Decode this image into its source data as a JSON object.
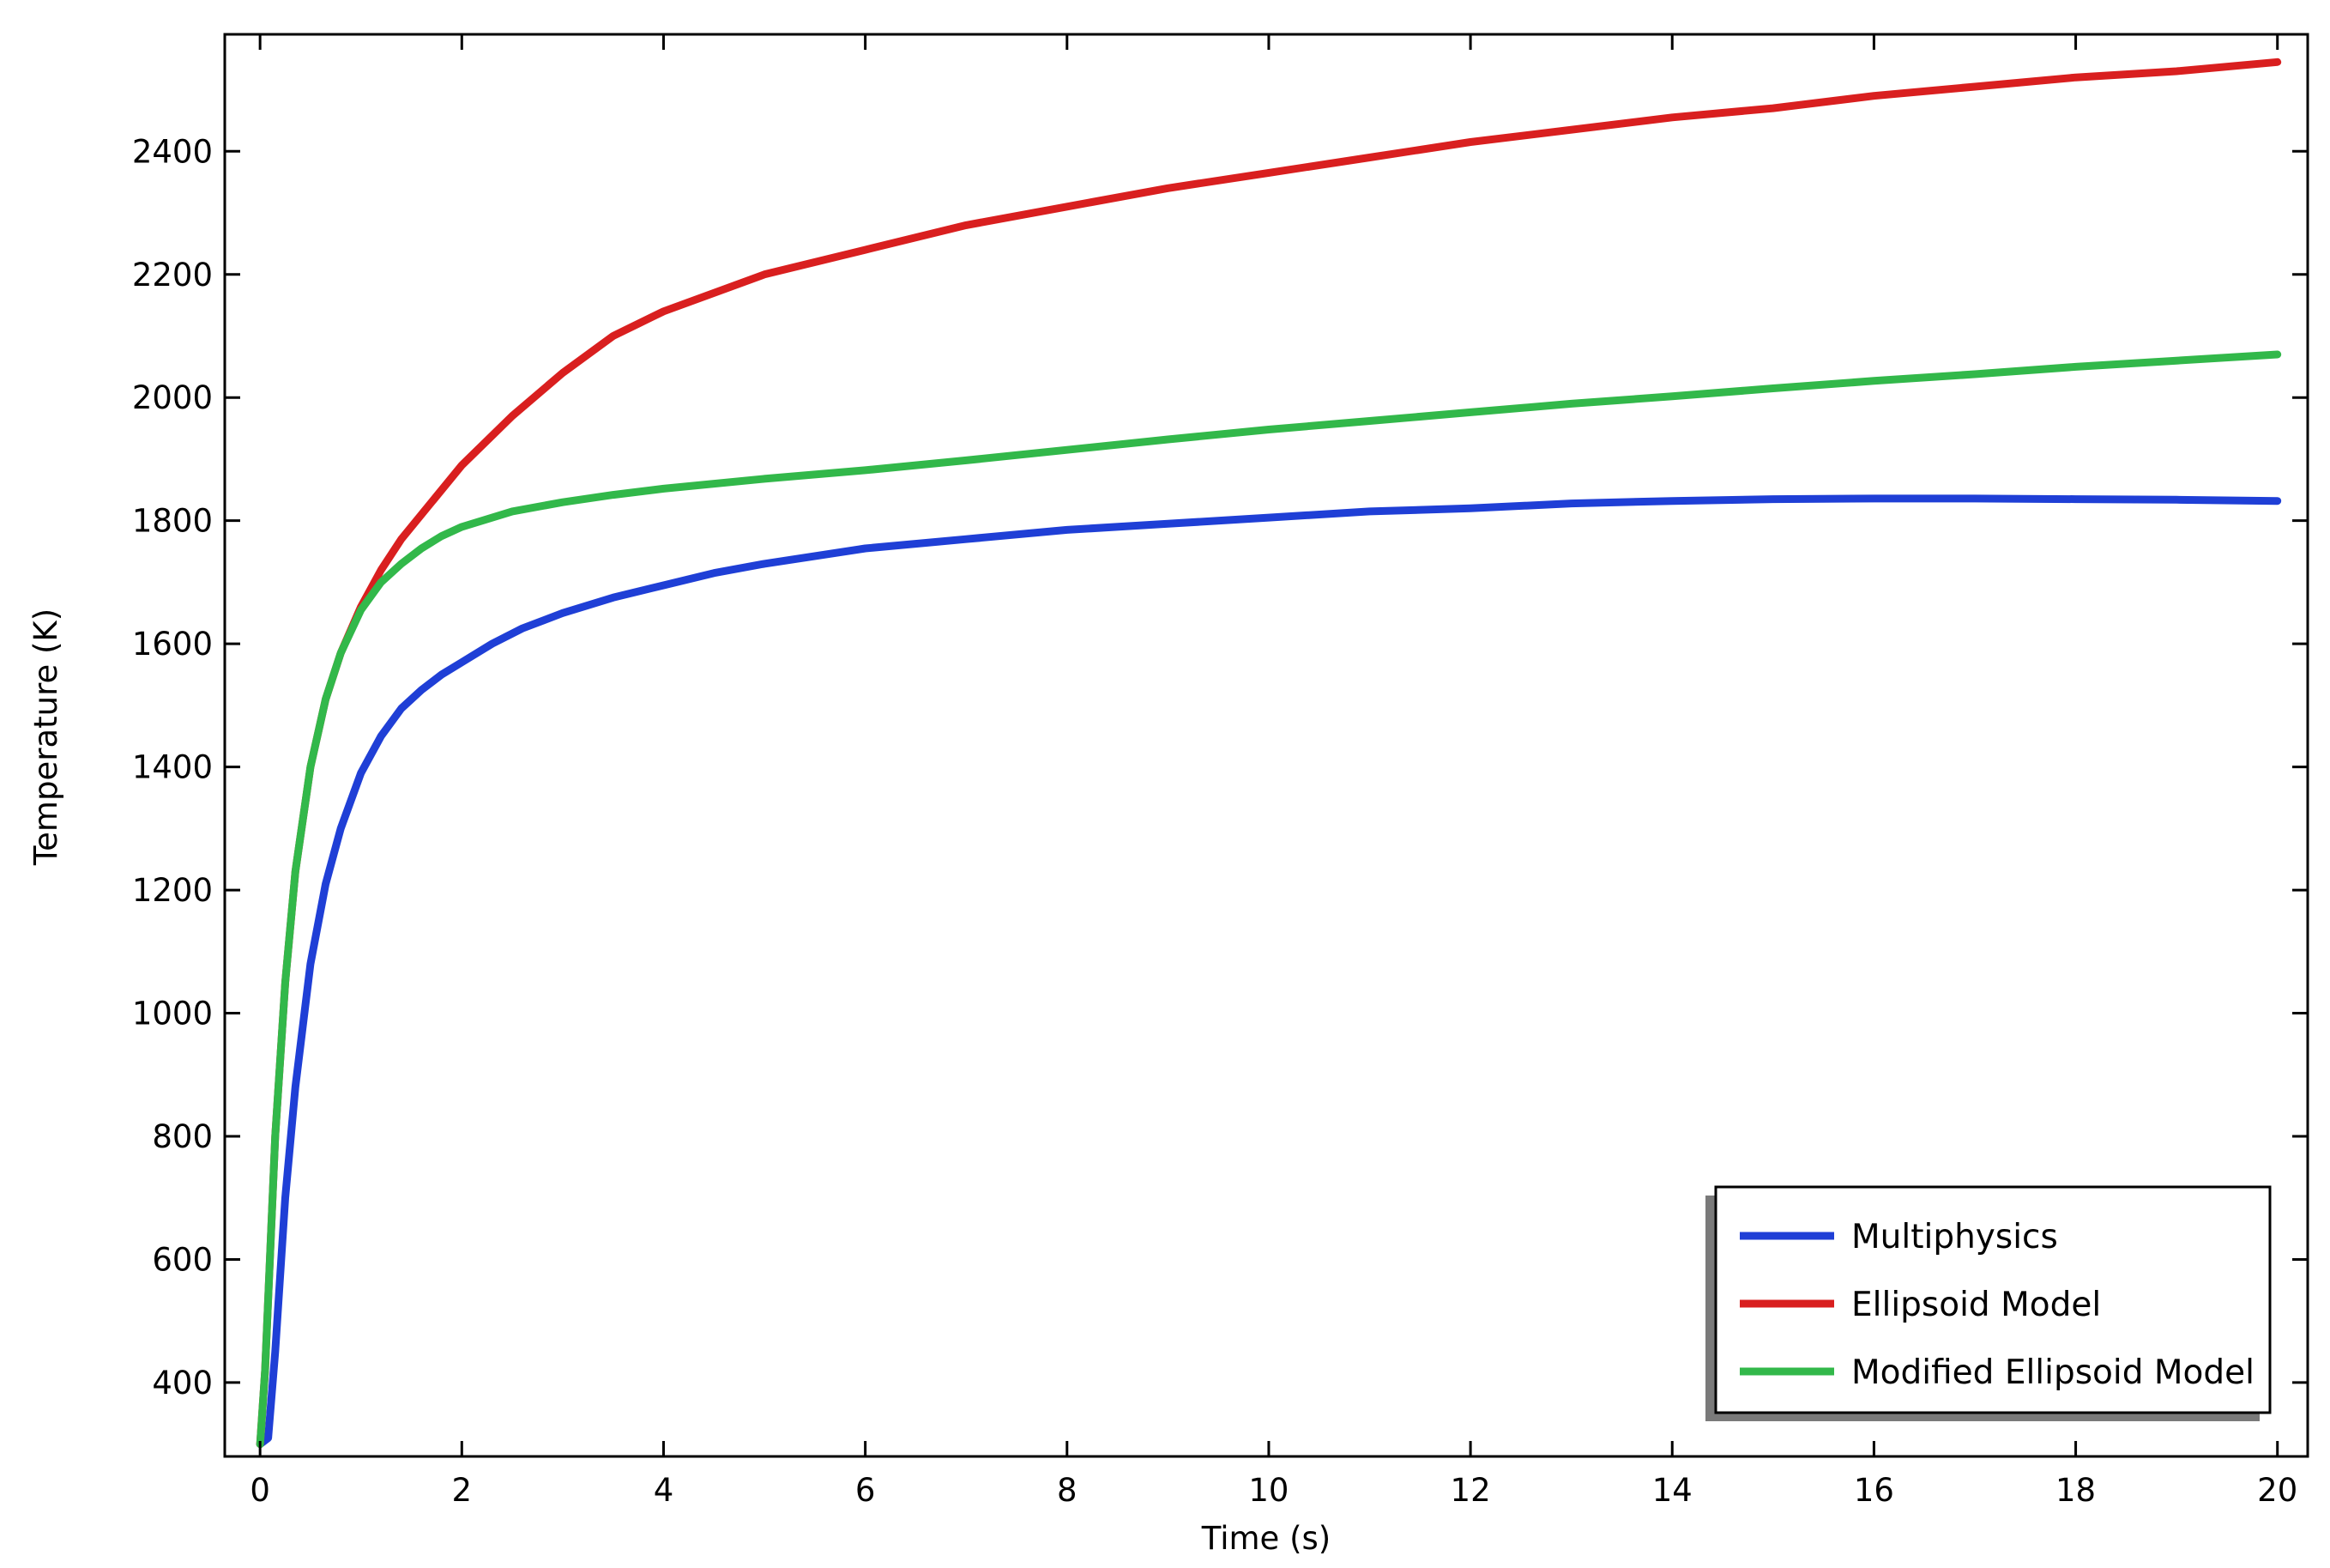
{
  "chart_data": {
    "type": "line",
    "title": "",
    "xlabel": "Time (s)",
    "ylabel": "Temperature (K)",
    "xlim": [
      -0.35,
      20.3
    ],
    "ylim": [
      280,
      2590
    ],
    "xticks": [
      0,
      2,
      4,
      6,
      8,
      10,
      12,
      14,
      16,
      18,
      20
    ],
    "yticks": [
      400,
      600,
      800,
      1000,
      1200,
      1400,
      1600,
      1800,
      2000,
      2200,
      2400
    ],
    "grid": false,
    "legend_position": "bottom-right",
    "series": [
      {
        "name": "Multiphysics",
        "color": "#1f3fd6",
        "x": [
          0,
          0.08,
          0.15,
          0.25,
          0.35,
          0.5,
          0.65,
          0.8,
          1.0,
          1.2,
          1.4,
          1.6,
          1.8,
          2.0,
          2.3,
          2.6,
          3.0,
          3.5,
          4.0,
          4.5,
          5.0,
          6.0,
          7.0,
          8.0,
          9.0,
          10.0,
          11.0,
          12.0,
          13.0,
          14.0,
          15.0,
          16.0,
          17.0,
          18.0,
          19.0,
          20.0
        ],
        "y": [
          300,
          310,
          450,
          700,
          880,
          1080,
          1210,
          1300,
          1390,
          1450,
          1495,
          1525,
          1550,
          1570,
          1600,
          1625,
          1650,
          1675,
          1695,
          1715,
          1730,
          1755,
          1770,
          1785,
          1795,
          1805,
          1815,
          1820,
          1828,
          1832,
          1835,
          1836,
          1836,
          1835,
          1834,
          1832
        ]
      },
      {
        "name": "Ellipsoid Model",
        "color": "#d91f1f",
        "x": [
          0,
          0.05,
          0.15,
          0.25,
          0.35,
          0.5,
          0.65,
          0.8,
          1.0,
          1.2,
          1.4,
          1.7,
          2.0,
          2.5,
          3.0,
          3.5,
          4.0,
          5.0,
          6.0,
          7.0,
          8.0,
          9.0,
          10.0,
          11.0,
          12.0,
          13.0,
          14.0,
          15.0,
          16.0,
          17.0,
          18.0,
          19.0,
          20.0
        ],
        "y": [
          300,
          420,
          800,
          1050,
          1230,
          1400,
          1510,
          1585,
          1660,
          1720,
          1770,
          1830,
          1890,
          1970,
          2040,
          2100,
          2140,
          2200,
          2240,
          2280,
          2310,
          2340,
          2365,
          2390,
          2415,
          2435,
          2455,
          2470,
          2490,
          2505,
          2520,
          2530,
          2545
        ]
      },
      {
        "name": "Modified Ellipsoid Model",
        "color": "#32b84a",
        "x": [
          0,
          0.05,
          0.15,
          0.25,
          0.35,
          0.5,
          0.65,
          0.8,
          1.0,
          1.2,
          1.4,
          1.6,
          1.8,
          2.0,
          2.5,
          3.0,
          3.5,
          4.0,
          5.0,
          6.0,
          7.0,
          8.0,
          9.0,
          10.0,
          11.0,
          12.0,
          13.0,
          14.0,
          15.0,
          16.0,
          17.0,
          18.0,
          19.0,
          20.0
        ],
        "y": [
          300,
          420,
          800,
          1050,
          1230,
          1400,
          1510,
          1585,
          1655,
          1700,
          1730,
          1755,
          1775,
          1790,
          1815,
          1830,
          1842,
          1852,
          1868,
          1882,
          1898,
          1915,
          1932,
          1948,
          1962,
          1976,
          1990,
          2002,
          2015,
          2027,
          2038,
          2050,
          2060,
          2070
        ]
      }
    ]
  }
}
